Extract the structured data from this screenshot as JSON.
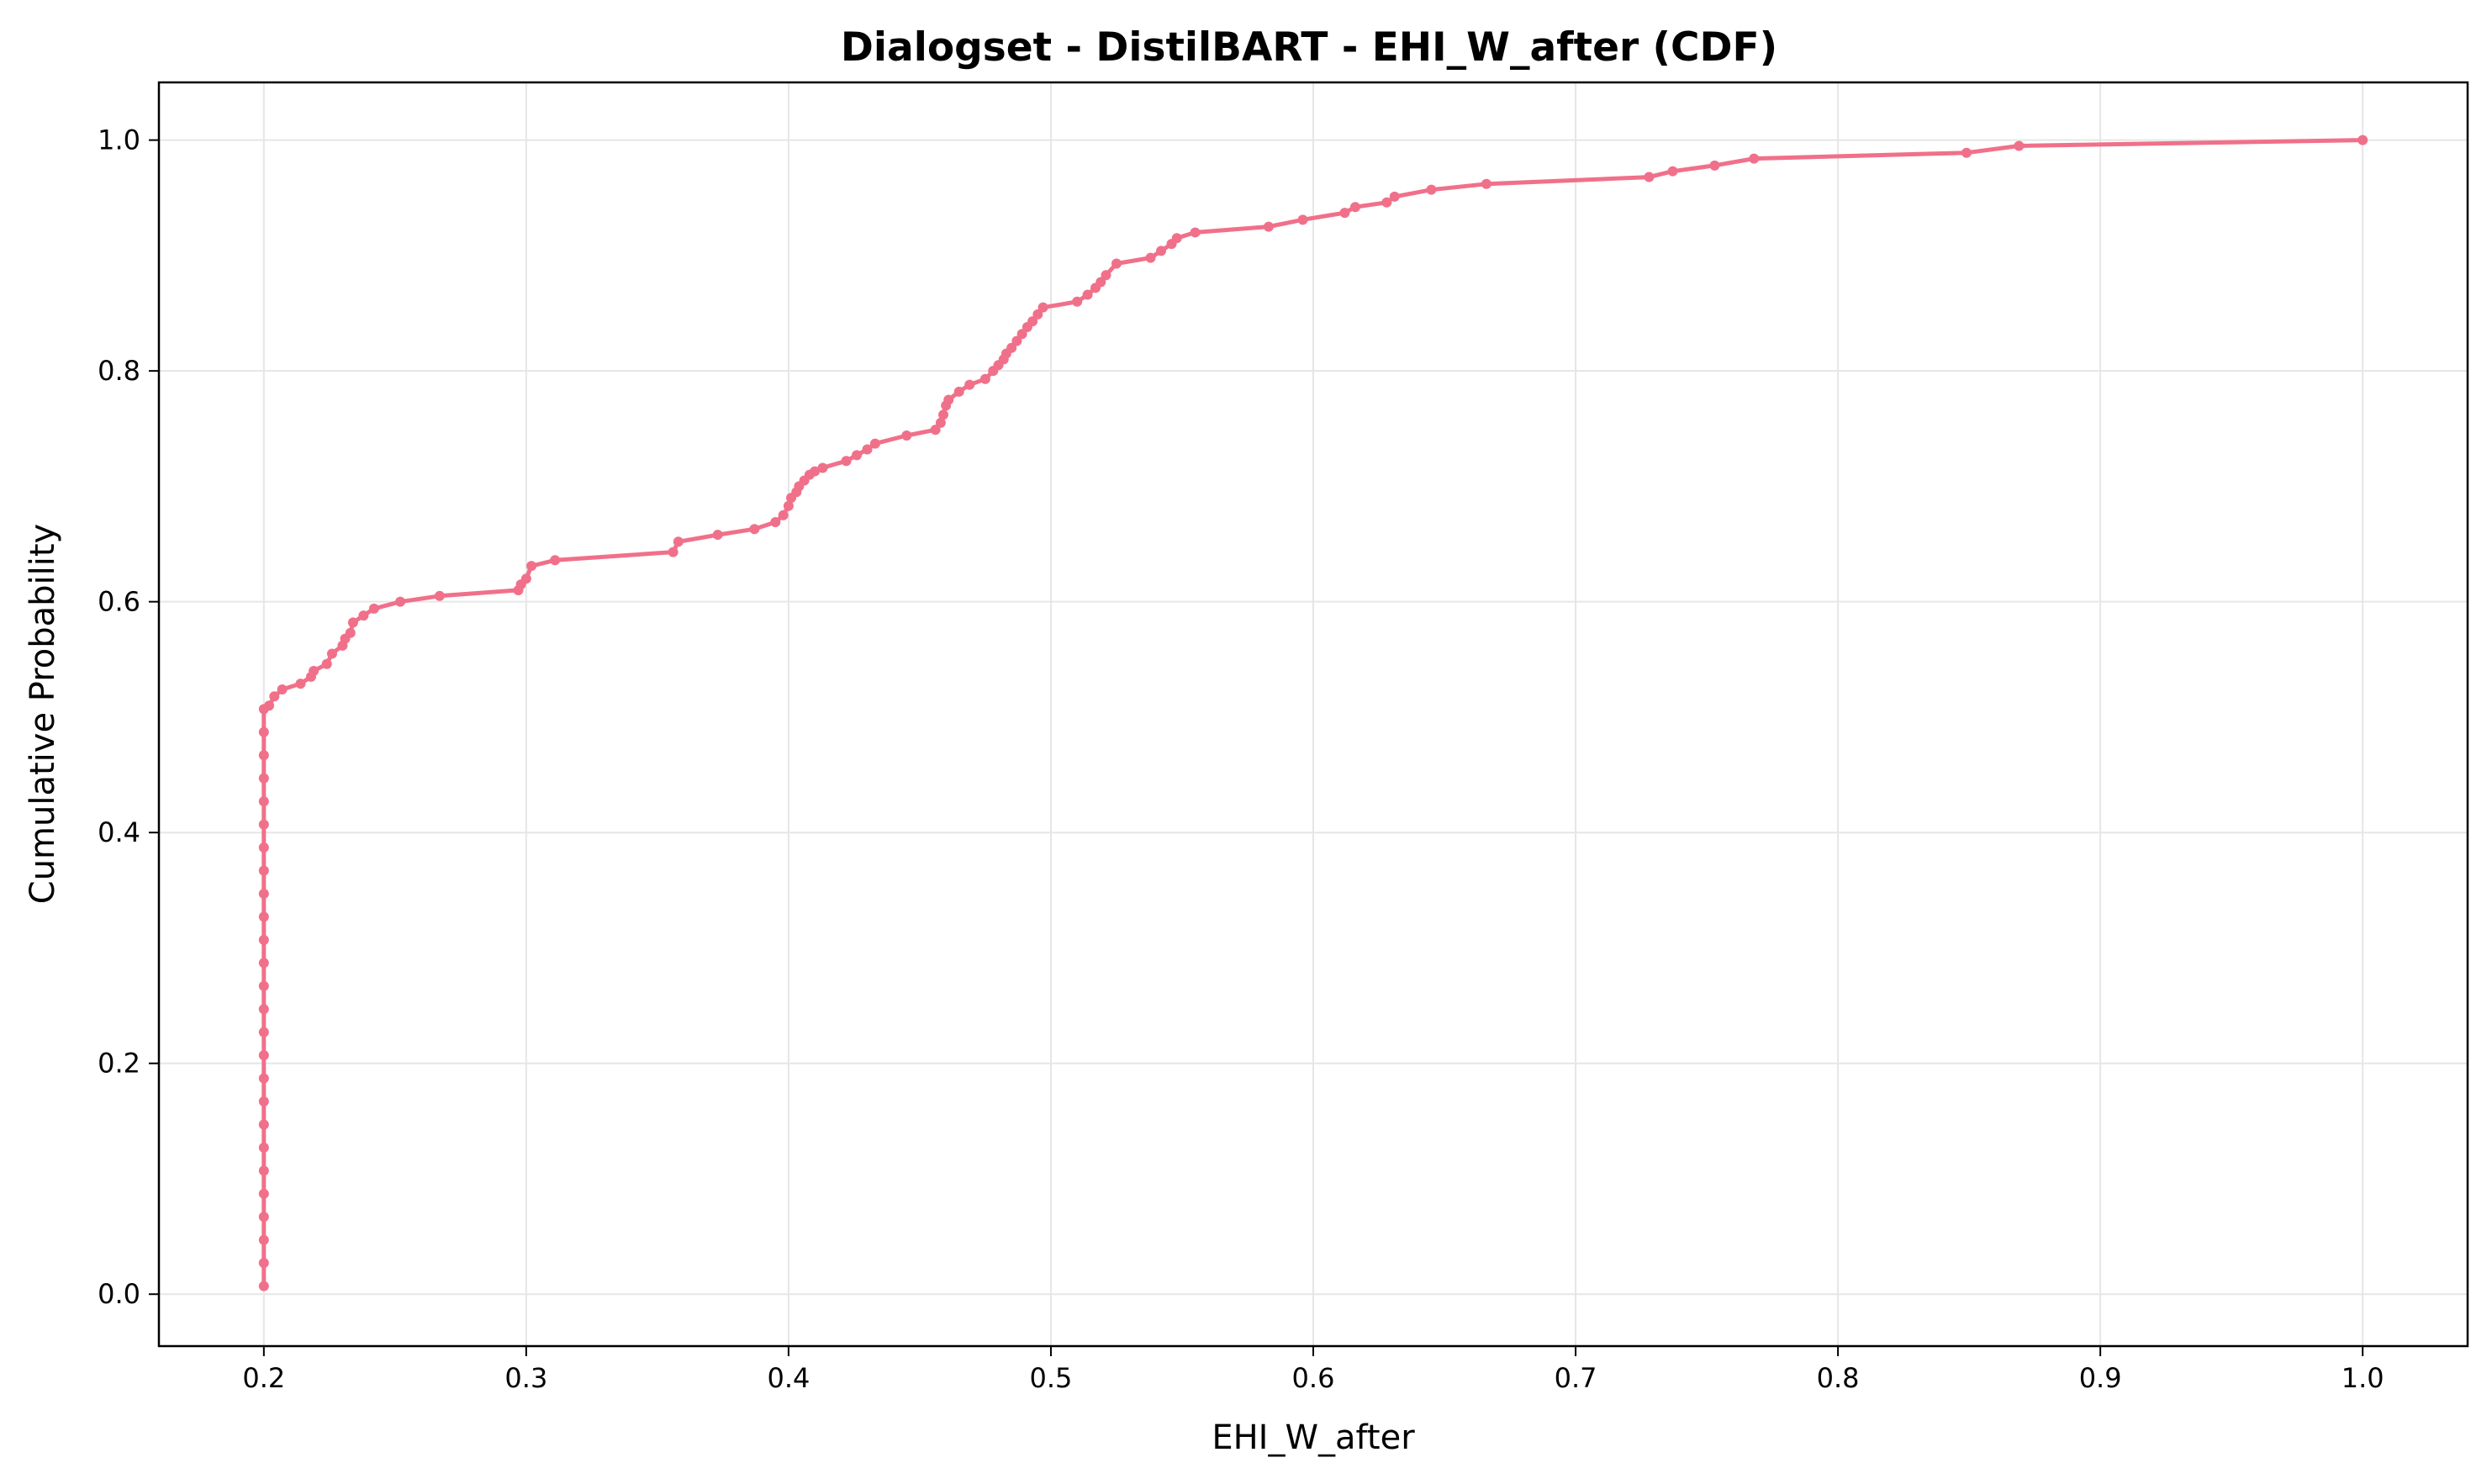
{
  "chart_data": {
    "type": "line",
    "title": "Dialogset - DistilBART - EHI_W_after (CDF)",
    "xlabel": "EHI_W_after",
    "ylabel": "Cumulative Probability",
    "xlim": [
      0.16,
      1.04
    ],
    "ylim": [
      -0.045,
      1.05
    ],
    "xticks": [
      0.2,
      0.3,
      0.4,
      0.5,
      0.6,
      0.7,
      0.8,
      0.9,
      1.0
    ],
    "xtick_labels": [
      "0.2",
      "0.3",
      "0.4",
      "0.5",
      "0.6",
      "0.7",
      "0.8",
      "0.9",
      "1.0"
    ],
    "yticks": [
      0.0,
      0.2,
      0.4,
      0.6,
      0.8,
      1.0
    ],
    "ytick_labels": [
      "0.0",
      "0.2",
      "0.4",
      "0.6",
      "0.8",
      "1.0"
    ],
    "grid": true,
    "legend": "none",
    "line_color": "#f0708a",
    "series": [
      {
        "x": [
          0.2,
          0.2,
          0.2,
          0.2,
          0.2,
          0.2,
          0.2,
          0.2,
          0.2,
          0.2,
          0.2,
          0.2,
          0.2,
          0.2,
          0.2,
          0.2,
          0.2,
          0.2,
          0.2,
          0.2,
          0.2,
          0.2,
          0.2,
          0.2,
          0.2,
          0.2,
          0.202,
          0.204,
          0.207,
          0.214,
          0.218,
          0.219,
          0.224,
          0.226,
          0.23,
          0.231,
          0.233,
          0.234,
          0.238,
          0.242,
          0.252,
          0.267,
          0.297,
          0.298,
          0.3,
          0.302,
          0.311,
          0.356,
          0.358,
          0.373,
          0.387,
          0.395,
          0.398,
          0.4,
          0.401,
          0.403,
          0.404,
          0.406,
          0.408,
          0.41,
          0.413,
          0.422,
          0.426,
          0.43,
          0.433,
          0.445,
          0.456,
          0.458,
          0.459,
          0.46,
          0.461,
          0.465,
          0.469,
          0.475,
          0.478,
          0.48,
          0.482,
          0.483,
          0.485,
          0.487,
          0.489,
          0.491,
          0.493,
          0.495,
          0.497,
          0.51,
          0.514,
          0.517,
          0.519,
          0.521,
          0.525,
          0.538,
          0.542,
          0.546,
          0.548,
          0.555,
          0.583,
          0.596,
          0.612,
          0.616,
          0.628,
          0.631,
          0.645,
          0.666,
          0.728,
          0.737,
          0.753,
          0.768,
          0.849,
          0.869,
          1.0
        ],
        "y": [
          0.007,
          0.027,
          0.047,
          0.067,
          0.087,
          0.107,
          0.127,
          0.147,
          0.167,
          0.187,
          0.207,
          0.227,
          0.247,
          0.267,
          0.287,
          0.307,
          0.327,
          0.347,
          0.367,
          0.387,
          0.407,
          0.427,
          0.447,
          0.467,
          0.487,
          0.507,
          0.51,
          0.518,
          0.524,
          0.529,
          0.535,
          0.54,
          0.546,
          0.555,
          0.562,
          0.568,
          0.573,
          0.582,
          0.588,
          0.594,
          0.6,
          0.605,
          0.61,
          0.615,
          0.62,
          0.631,
          0.636,
          0.643,
          0.652,
          0.658,
          0.663,
          0.669,
          0.675,
          0.683,
          0.69,
          0.695,
          0.7,
          0.705,
          0.71,
          0.713,
          0.716,
          0.722,
          0.727,
          0.732,
          0.737,
          0.744,
          0.749,
          0.755,
          0.762,
          0.77,
          0.775,
          0.782,
          0.788,
          0.793,
          0.8,
          0.805,
          0.81,
          0.815,
          0.82,
          0.826,
          0.832,
          0.838,
          0.843,
          0.849,
          0.855,
          0.86,
          0.866,
          0.872,
          0.877,
          0.883,
          0.893,
          0.898,
          0.904,
          0.91,
          0.915,
          0.92,
          0.925,
          0.931,
          0.937,
          0.942,
          0.946,
          0.951,
          0.957,
          0.962,
          0.968,
          0.973,
          0.978,
          0.984,
          0.989,
          0.995,
          1.0
        ]
      }
    ]
  }
}
